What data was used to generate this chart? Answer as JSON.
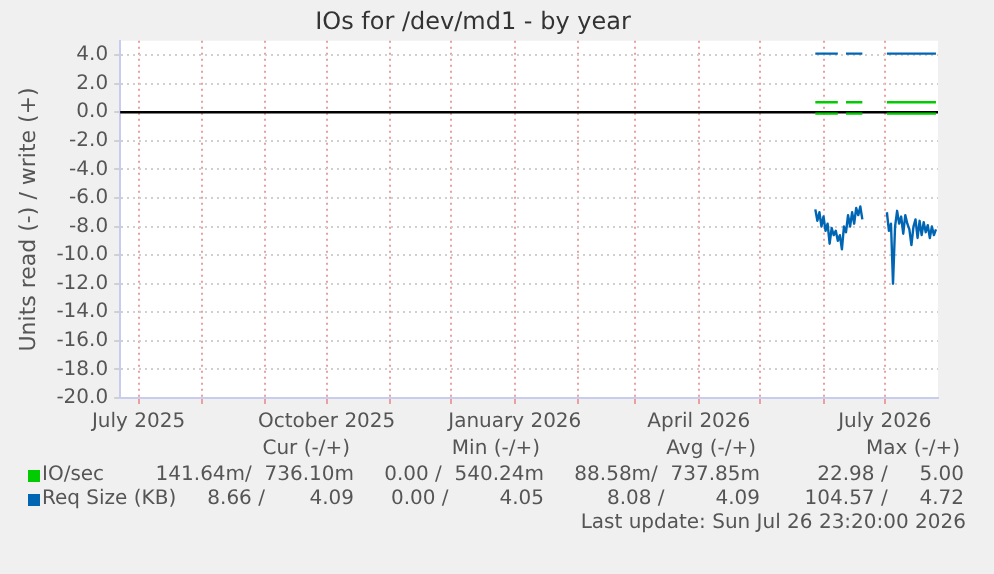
{
  "chart_data": {
    "type": "line",
    "title": "IOs for /dev/md1 - by year",
    "ylabel": "Units read (-) / write (+)",
    "xlim": [
      "2025-06-22",
      "2026-07-27"
    ],
    "xticks": [
      {
        "value": "2025-07-01",
        "label": "July 2025"
      },
      {
        "value": "2025-08-01",
        "label": null
      },
      {
        "value": "2025-09-01",
        "label": null
      },
      {
        "value": "2025-10-01",
        "label": "October 2025"
      },
      {
        "value": "2025-11-01",
        "label": null
      },
      {
        "value": "2025-12-01",
        "label": null
      },
      {
        "value": "2026-01-01",
        "label": "January 2026"
      },
      {
        "value": "2026-02-01",
        "label": null
      },
      {
        "value": "2026-03-01",
        "label": null
      },
      {
        "value": "2026-04-01",
        "label": "April 2026"
      },
      {
        "value": "2026-05-01",
        "label": null
      },
      {
        "value": "2026-06-01",
        "label": null
      },
      {
        "value": "2026-07-01",
        "label": "July 2026"
      }
    ],
    "ylim": [
      -20,
      5
    ],
    "yticks": [
      {
        "value": 4,
        "label": "4.0"
      },
      {
        "value": 2,
        "label": "2.0"
      },
      {
        "value": 0,
        "label": "0.0"
      },
      {
        "value": -2,
        "label": "-2.0"
      },
      {
        "value": -4,
        "label": "-4.0"
      },
      {
        "value": -6,
        "label": "-6.0"
      },
      {
        "value": -8,
        "label": "-8.0"
      },
      {
        "value": -10,
        "label": "-10.0"
      },
      {
        "value": -12,
        "label": "-12.0"
      },
      {
        "value": -14,
        "label": "-14.0"
      },
      {
        "value": -16,
        "label": "-16.0"
      },
      {
        "value": -18,
        "label": "-18.0"
      },
      {
        "value": -20,
        "label": "-20.0"
      }
    ],
    "grid": true,
    "legend": "bottom",
    "marker": "none",
    "line_style": "solid",
    "ref_lines": [
      {
        "axis": "y",
        "value": 0,
        "color": "#000000"
      }
    ],
    "series": [
      {
        "color": "#00cc00",
        "x": [
          "2026-05-28",
          "2026-06-08",
          "2026-06-10",
          "2026-06-12",
          "2026-06-20",
          "2026-06-26",
          "2026-07-02",
          "2026-07-26"
        ],
        "values": [
          -0.1,
          -0.1,
          null,
          -0.1,
          -0.1,
          null,
          -0.1,
          -0.1
        ]
      },
      {
        "name": "IO/sec",
        "color": "#00cc00",
        "x": [
          "2026-05-28",
          "2026-06-08",
          "2026-06-10",
          "2026-06-12",
          "2026-06-20",
          "2026-06-26",
          "2026-07-02",
          "2026-07-26"
        ],
        "values": [
          0.7,
          0.7,
          null,
          0.7,
          0.7,
          null,
          0.7,
          0.7
        ]
      },
      {
        "color": "#0066b3",
        "x": [
          "2026-05-28",
          "2026-05-29",
          "2026-05-30",
          "2026-05-31",
          "2026-06-01",
          "2026-06-02",
          "2026-06-03",
          "2026-06-04",
          "2026-06-05",
          "2026-06-06",
          "2026-06-07",
          "2026-06-08",
          "2026-06-09",
          "2026-06-10",
          "2026-06-11",
          "2026-06-12",
          "2026-06-13",
          "2026-06-14",
          "2026-06-15",
          "2026-06-16",
          "2026-06-17",
          "2026-06-18",
          "2026-06-19",
          "2026-06-20",
          "2026-06-26",
          "2026-07-02",
          "2026-07-03",
          "2026-07-04",
          "2026-07-05",
          "2026-07-06",
          "2026-07-07",
          "2026-07-08",
          "2026-07-09",
          "2026-07-10",
          "2026-07-11",
          "2026-07-12",
          "2026-07-13",
          "2026-07-14",
          "2026-07-15",
          "2026-07-16",
          "2026-07-17",
          "2026-07-18",
          "2026-07-19",
          "2026-07-20",
          "2026-07-21",
          "2026-07-22",
          "2026-07-23",
          "2026-07-24",
          "2026-07-25",
          "2026-07-26"
        ],
        "values": [
          -6.8,
          -7.6,
          -7.0,
          -8.0,
          -7.3,
          -8.3,
          -7.8,
          -9.2,
          -8.1,
          -8.6,
          -8.3,
          -9.0,
          -8.6,
          -9.6,
          -8.0,
          -8.4,
          -7.2,
          -8.0,
          -7.0,
          -7.8,
          -6.7,
          -7.2,
          -6.6,
          -7.5,
          null,
          -7.0,
          -8.3,
          -7.8,
          -12.0,
          -8.0,
          -6.9,
          -7.8,
          -7.3,
          -8.5,
          -7.2,
          -7.8,
          -8.2,
          -9.3,
          -8.0,
          -7.5,
          -8.8,
          -7.6,
          -8.6,
          -7.7,
          -8.4,
          -7.9,
          -8.8,
          -8.0,
          -8.6,
          -8.2
        ]
      },
      {
        "name": "Req Size (KB)",
        "color": "#0066b3",
        "x": [
          "2026-05-28",
          "2026-06-08",
          "2026-06-10",
          "2026-06-12",
          "2026-06-20",
          "2026-06-26",
          "2026-07-02",
          "2026-07-26"
        ],
        "values": [
          4.1,
          4.1,
          null,
          4.1,
          4.1,
          null,
          4.1,
          4.1
        ]
      }
    ],
    "annotations": [
      "Cur (-/+)",
      "Min (-/+)",
      "Avg (-/+)",
      "Max (-/+)",
      "141.64m/  736.10m",
      "0.00 /  540.24m",
      "88.58m/  737.85m",
      "22.98 /     5.00",
      "8.66 /       4.09",
      "0.00 /        4.05",
      "8.08 /        4.09",
      "104.57 /     4.72",
      "Last update: Sun Jul 26 23:20:00 2026"
    ]
  }
}
